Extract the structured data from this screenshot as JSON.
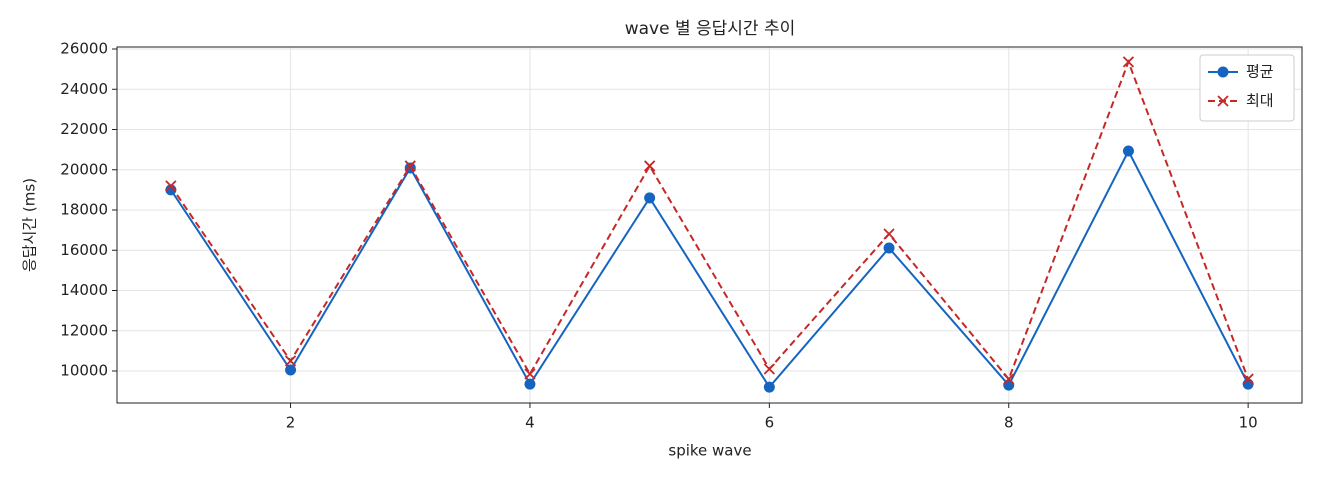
{
  "chart_data": {
    "type": "line",
    "title": "wave 별 응답시간 추이",
    "x_label": "spike wave",
    "y_label": "응답시간 (ms)",
    "x": [
      1,
      2,
      3,
      4,
      5,
      6,
      7,
      8,
      9,
      10
    ],
    "series": [
      {
        "name": "평균",
        "color": "#1565c0",
        "line_style": "solid",
        "marker": "circle",
        "values": [
          19000,
          10050,
          20090,
          9350,
          18600,
          9200,
          16110,
          9300,
          20930,
          9350
        ]
      },
      {
        "name": "최대",
        "color": "#c62828",
        "line_style": "dashed",
        "marker": "x",
        "values": [
          19200,
          10500,
          20190,
          9850,
          20190,
          10100,
          16810,
          9600,
          25360,
          9600
        ]
      }
    ],
    "xlim": [
      0.55,
      10.45
    ],
    "xticks": [
      2,
      4,
      6,
      8,
      10
    ],
    "ylim": [
      8410,
      26100
    ],
    "yticks": [
      10000,
      12000,
      14000,
      16000,
      18000,
      20000,
      22000,
      24000,
      26000
    ],
    "grid": true,
    "legend": "upper right"
  }
}
